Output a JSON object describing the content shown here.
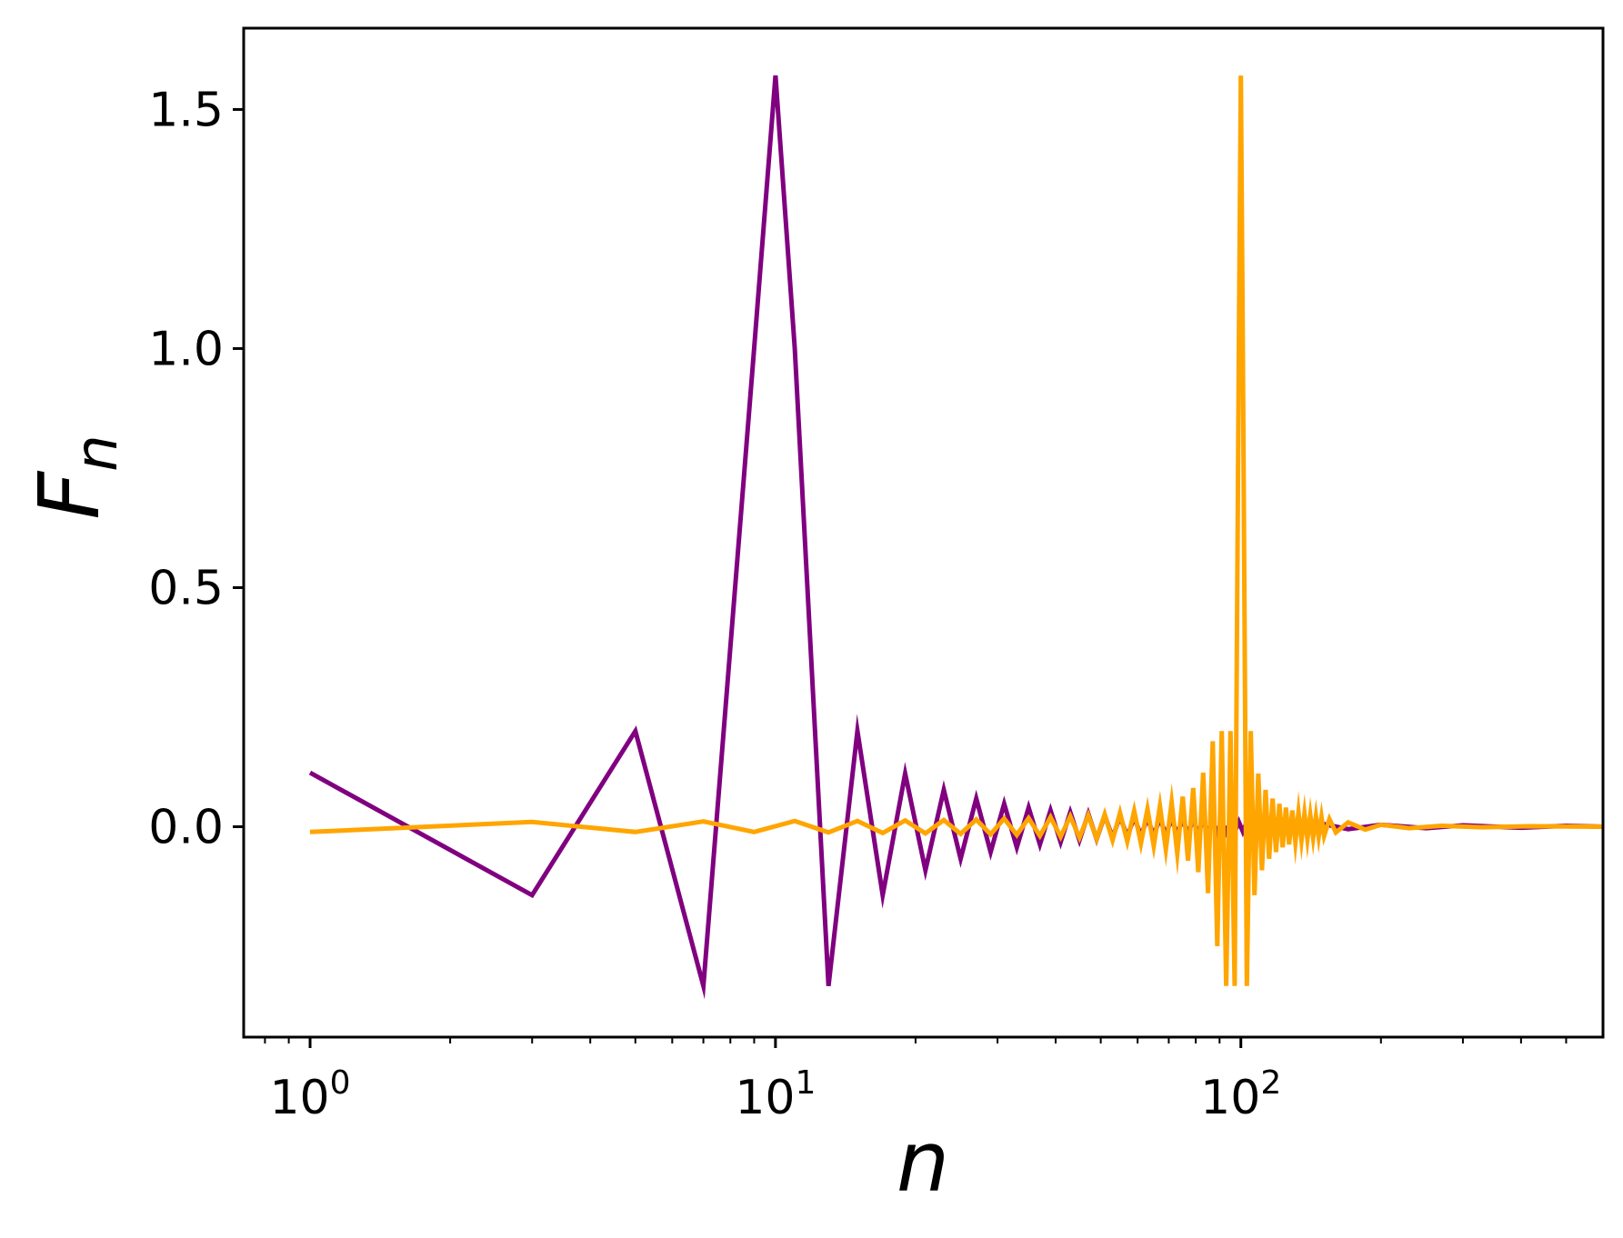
{
  "chart_data": {
    "type": "line",
    "xscale": "log",
    "xlim": [
      0.72,
      600
    ],
    "ylim": [
      -0.44,
      1.67
    ],
    "grid": false,
    "xlabel": "n",
    "ylabel": "F",
    "ylabel_subscript": "n",
    "x_ticks": [
      {
        "value": 1,
        "base": "10",
        "exp": "0"
      },
      {
        "value": 10,
        "base": "10",
        "exp": "1"
      },
      {
        "value": 100,
        "base": "10",
        "exp": "2"
      }
    ],
    "y_ticks": [
      {
        "value": 0.0,
        "label": "0.0"
      },
      {
        "value": 0.5,
        "label": "0.5"
      },
      {
        "value": 1.0,
        "label": "1.0"
      },
      {
        "value": 1.5,
        "label": "1.5"
      }
    ],
    "series": [
      {
        "color": "#800080",
        "x": [
          1,
          3,
          5,
          7,
          9,
          10,
          11,
          13,
          15,
          17,
          19,
          21,
          23,
          25,
          27,
          29,
          31,
          33,
          35,
          37,
          39,
          41,
          43,
          45,
          47,
          49,
          51,
          53,
          55,
          57,
          59,
          61,
          63,
          65,
          67,
          69,
          71,
          73,
          75,
          77,
          79,
          81,
          83,
          85,
          87,
          89,
          91,
          93,
          95,
          97,
          99,
          101,
          103,
          105,
          107,
          109,
          111,
          113,
          115,
          117,
          119,
          121,
          123,
          125,
          130,
          140,
          150,
          170,
          200,
          250,
          300,
          400,
          500,
          600
        ],
        "y": [
          0.113,
          -0.143,
          0.2,
          -0.333,
          1.0,
          1.571,
          1.0,
          -0.333,
          0.2,
          -0.143,
          0.111,
          -0.091,
          0.077,
          -0.067,
          0.059,
          -0.053,
          0.048,
          -0.043,
          0.04,
          -0.037,
          0.034,
          -0.032,
          0.03,
          -0.028,
          0.027,
          -0.026,
          0.024,
          -0.023,
          0.022,
          -0.021,
          0.02,
          -0.019,
          0.018,
          -0.018,
          0.017,
          -0.016,
          0.016,
          -0.015,
          0.015,
          -0.014,
          0.014,
          -0.013,
          0.013,
          -0.013,
          0.012,
          -0.012,
          0.011,
          -0.011,
          0.011,
          -0.011,
          0.01,
          -0.01,
          0.01,
          -0.01,
          0.009,
          -0.009,
          0.009,
          -0.009,
          0.009,
          -0.008,
          0.008,
          -0.008,
          0.008,
          -0.008,
          0.007,
          -0.007,
          0.006,
          -0.005,
          0.004,
          -0.003,
          0.003,
          -0.002,
          0.002,
          0.0
        ]
      },
      {
        "color": "#FFA500",
        "x": [
          1,
          3,
          5,
          7,
          9,
          11,
          13,
          15,
          17,
          19,
          21,
          23,
          25,
          27,
          29,
          31,
          33,
          35,
          37,
          39,
          41,
          43,
          45,
          47,
          49,
          51,
          53,
          55,
          57,
          59,
          61,
          63,
          65,
          67,
          69,
          71,
          73,
          75,
          77,
          79,
          81,
          83,
          85,
          87,
          89,
          91,
          93,
          95,
          97,
          99,
          100,
          101,
          103,
          105,
          107,
          109,
          111,
          113,
          115,
          117,
          119,
          121,
          123,
          125,
          127,
          129,
          131,
          133,
          135,
          137,
          139,
          141,
          143,
          145,
          147,
          149,
          151,
          155,
          160,
          170,
          185,
          200,
          230,
          270,
          330,
          420,
          600
        ],
        "y": [
          -0.011,
          0.01,
          -0.011,
          0.011,
          -0.011,
          0.012,
          -0.012,
          0.012,
          -0.013,
          0.013,
          -0.014,
          0.014,
          -0.015,
          0.015,
          -0.016,
          0.017,
          -0.017,
          0.018,
          -0.019,
          0.02,
          -0.021,
          0.022,
          -0.023,
          0.024,
          -0.025,
          0.026,
          -0.028,
          0.029,
          -0.031,
          0.033,
          -0.035,
          0.037,
          -0.04,
          0.043,
          -0.047,
          0.051,
          -0.056,
          0.063,
          -0.071,
          0.081,
          -0.095,
          0.113,
          -0.139,
          0.179,
          -0.25,
          0.2,
          -0.333,
          0.2,
          -0.333,
          1.0,
          1.571,
          1.0,
          -0.333,
          0.2,
          -0.143,
          0.111,
          -0.091,
          0.077,
          -0.067,
          0.059,
          -0.053,
          0.048,
          -0.043,
          0.04,
          -0.037,
          0.034,
          -0.032,
          0.03,
          -0.028,
          0.027,
          -0.026,
          0.024,
          -0.023,
          0.022,
          -0.021,
          0.02,
          -0.019,
          0.016,
          -0.012,
          0.009,
          -0.006,
          0.004,
          -0.003,
          0.002,
          -0.001,
          0.001,
          0.0
        ]
      }
    ]
  }
}
